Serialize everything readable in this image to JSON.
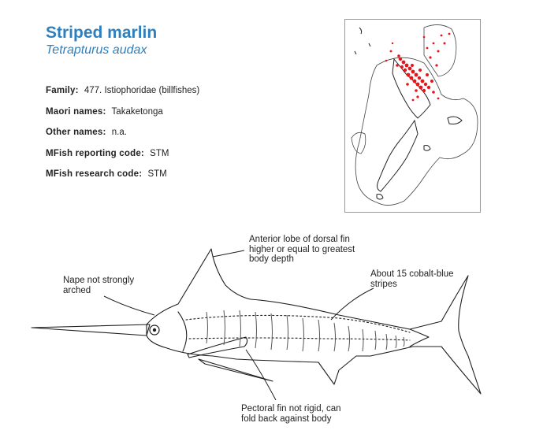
{
  "header": {
    "common_name": "Striped marlin",
    "scientific_name": "Tetrapturus audax"
  },
  "info": [
    {
      "label": "Family:",
      "value": "477. Istiophoridae (billfishes)"
    },
    {
      "label": "Maori names:",
      "value": "Takaketonga"
    },
    {
      "label": "Other names:",
      "value": "n.a."
    },
    {
      "label": "MFish reporting code:",
      "value": "STM"
    },
    {
      "label": "MFish research code:",
      "value": "STM"
    }
  ],
  "map": {
    "point_color": "#e8141c",
    "outline_color": "#333333"
  },
  "annotations": {
    "dorsal_fin": [
      "Anterior lobe of dorsal fin",
      "higher or equal to greatest",
      "body depth"
    ],
    "nape": [
      "Nape not strongly",
      "arched"
    ],
    "stripes": [
      "About 15 cobalt-blue",
      "stripes"
    ],
    "pectoral_fin": [
      "Pectoral fin not rigid, can",
      "fold back against body"
    ]
  }
}
